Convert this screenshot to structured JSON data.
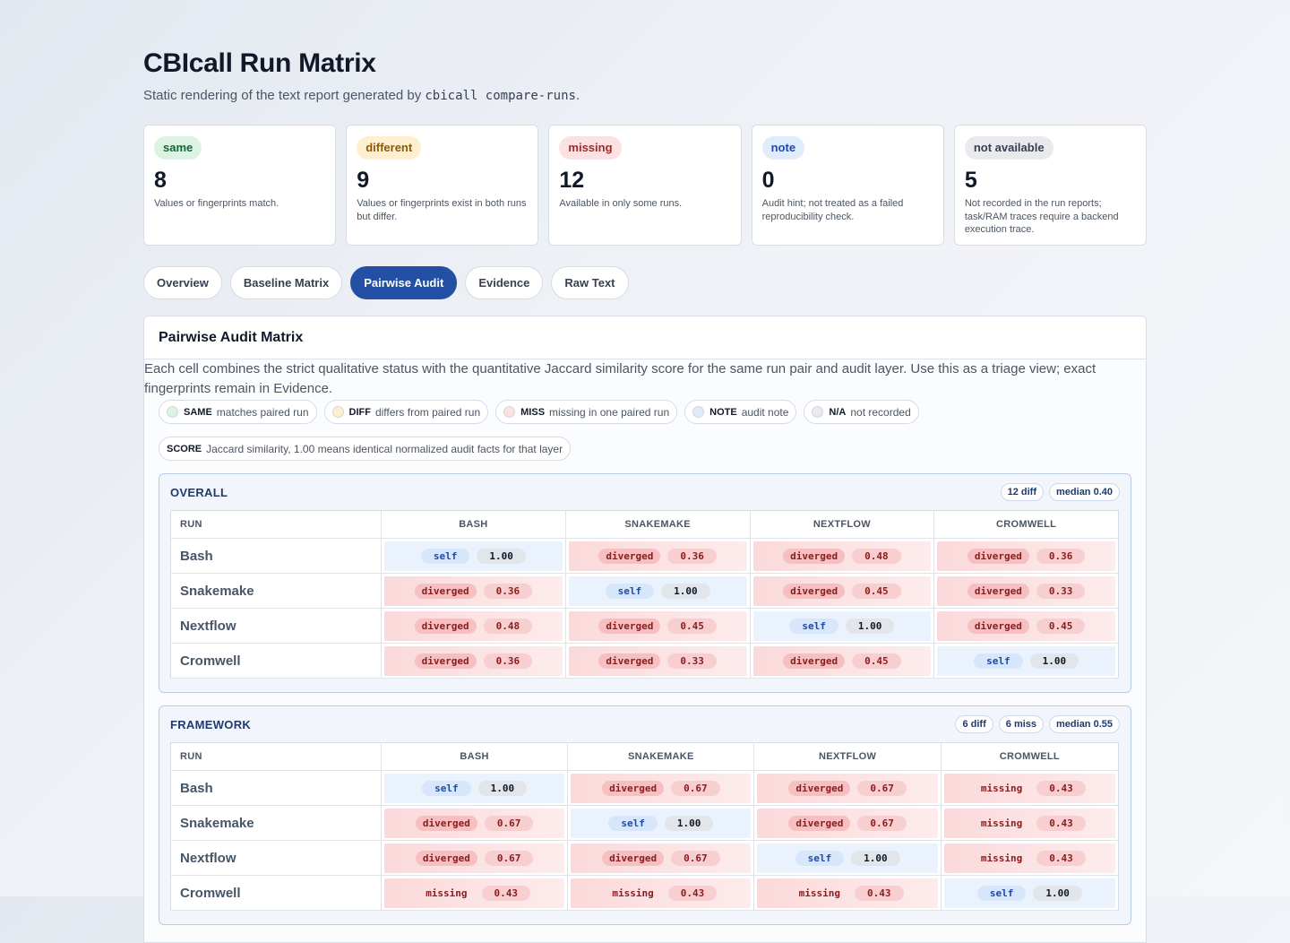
{
  "header": {
    "title": "CBIcall Run Matrix",
    "subtitle_prefix": "Static rendering of the text report generated by ",
    "subtitle_code": "cbicall compare-runs",
    "subtitle_suffix": "."
  },
  "cards": [
    {
      "label": "same",
      "count": "8",
      "desc": "Values or fingerprints match."
    },
    {
      "label": "different",
      "count": "9",
      "desc": "Values or fingerprints exist in both runs but differ."
    },
    {
      "label": "missing",
      "count": "12",
      "desc": "Available in only some runs."
    },
    {
      "label": "note",
      "count": "0",
      "desc": "Audit hint; not treated as a failed reproducibility check."
    },
    {
      "label": "not available",
      "count": "5",
      "desc": "Not recorded in the run reports; task/RAM traces require a backend execution trace."
    }
  ],
  "tabs": [
    "Overview",
    "Baseline Matrix",
    "Pairwise Audit",
    "Evidence",
    "Raw Text"
  ],
  "active_tab": "Pairwise Audit",
  "panel": {
    "title": "Pairwise Audit Matrix",
    "description": "Each cell combines the strict qualitative status with the quantitative Jaccard similarity score for the same run pair and audit layer. Use this as a triage view; exact fingerprints remain in Evidence."
  },
  "legend": [
    {
      "key": "SAME",
      "text": "matches paired run",
      "color": "#dcf3e4"
    },
    {
      "key": "DIFF",
      "text": "differs from paired run",
      "color": "#fdefcf"
    },
    {
      "key": "MISS",
      "text": "missing in one paired run",
      "color": "#fbe1e1"
    },
    {
      "key": "NOTE",
      "text": "audit note",
      "color": "#e0ebfb"
    },
    {
      "key": "N/A",
      "text": "not recorded",
      "color": "#e8eaee"
    }
  ],
  "score_legend": {
    "key": "SCORE",
    "text": "Jaccard similarity, 1.00 means identical normalized audit facts for that layer"
  },
  "columns": [
    "Run",
    "Bash",
    "Snakemake",
    "Nextflow",
    "Cromwell"
  ],
  "sections": [
    {
      "title": "OVERALL",
      "badges": [
        "12 diff",
        "median 0.40"
      ],
      "rows": [
        {
          "run": "Bash",
          "cells": [
            [
              "self",
              "1.00"
            ],
            [
              "diverged",
              "0.36"
            ],
            [
              "diverged",
              "0.48"
            ],
            [
              "diverged",
              "0.36"
            ]
          ]
        },
        {
          "run": "Snakemake",
          "cells": [
            [
              "diverged",
              "0.36"
            ],
            [
              "self",
              "1.00"
            ],
            [
              "diverged",
              "0.45"
            ],
            [
              "diverged",
              "0.33"
            ]
          ]
        },
        {
          "run": "Nextflow",
          "cells": [
            [
              "diverged",
              "0.48"
            ],
            [
              "diverged",
              "0.45"
            ],
            [
              "self",
              "1.00"
            ],
            [
              "diverged",
              "0.45"
            ]
          ]
        },
        {
          "run": "Cromwell",
          "cells": [
            [
              "diverged",
              "0.36"
            ],
            [
              "diverged",
              "0.33"
            ],
            [
              "diverged",
              "0.45"
            ],
            [
              "self",
              "1.00"
            ]
          ]
        }
      ]
    },
    {
      "title": "FRAMEWORK",
      "badges": [
        "6 diff",
        "6 miss",
        "median 0.55"
      ],
      "rows": [
        {
          "run": "Bash",
          "cells": [
            [
              "self",
              "1.00"
            ],
            [
              "diverged",
              "0.67"
            ],
            [
              "diverged",
              "0.67"
            ],
            [
              "missing",
              "0.43"
            ]
          ]
        },
        {
          "run": "Snakemake",
          "cells": [
            [
              "diverged",
              "0.67"
            ],
            [
              "self",
              "1.00"
            ],
            [
              "diverged",
              "0.67"
            ],
            [
              "missing",
              "0.43"
            ]
          ]
        },
        {
          "run": "Nextflow",
          "cells": [
            [
              "diverged",
              "0.67"
            ],
            [
              "diverged",
              "0.67"
            ],
            [
              "self",
              "1.00"
            ],
            [
              "missing",
              "0.43"
            ]
          ]
        },
        {
          "run": "Cromwell",
          "cells": [
            [
              "missing",
              "0.43"
            ],
            [
              "missing",
              "0.43"
            ],
            [
              "missing",
              "0.43"
            ],
            [
              "self",
              "1.00"
            ]
          ]
        }
      ]
    }
  ]
}
